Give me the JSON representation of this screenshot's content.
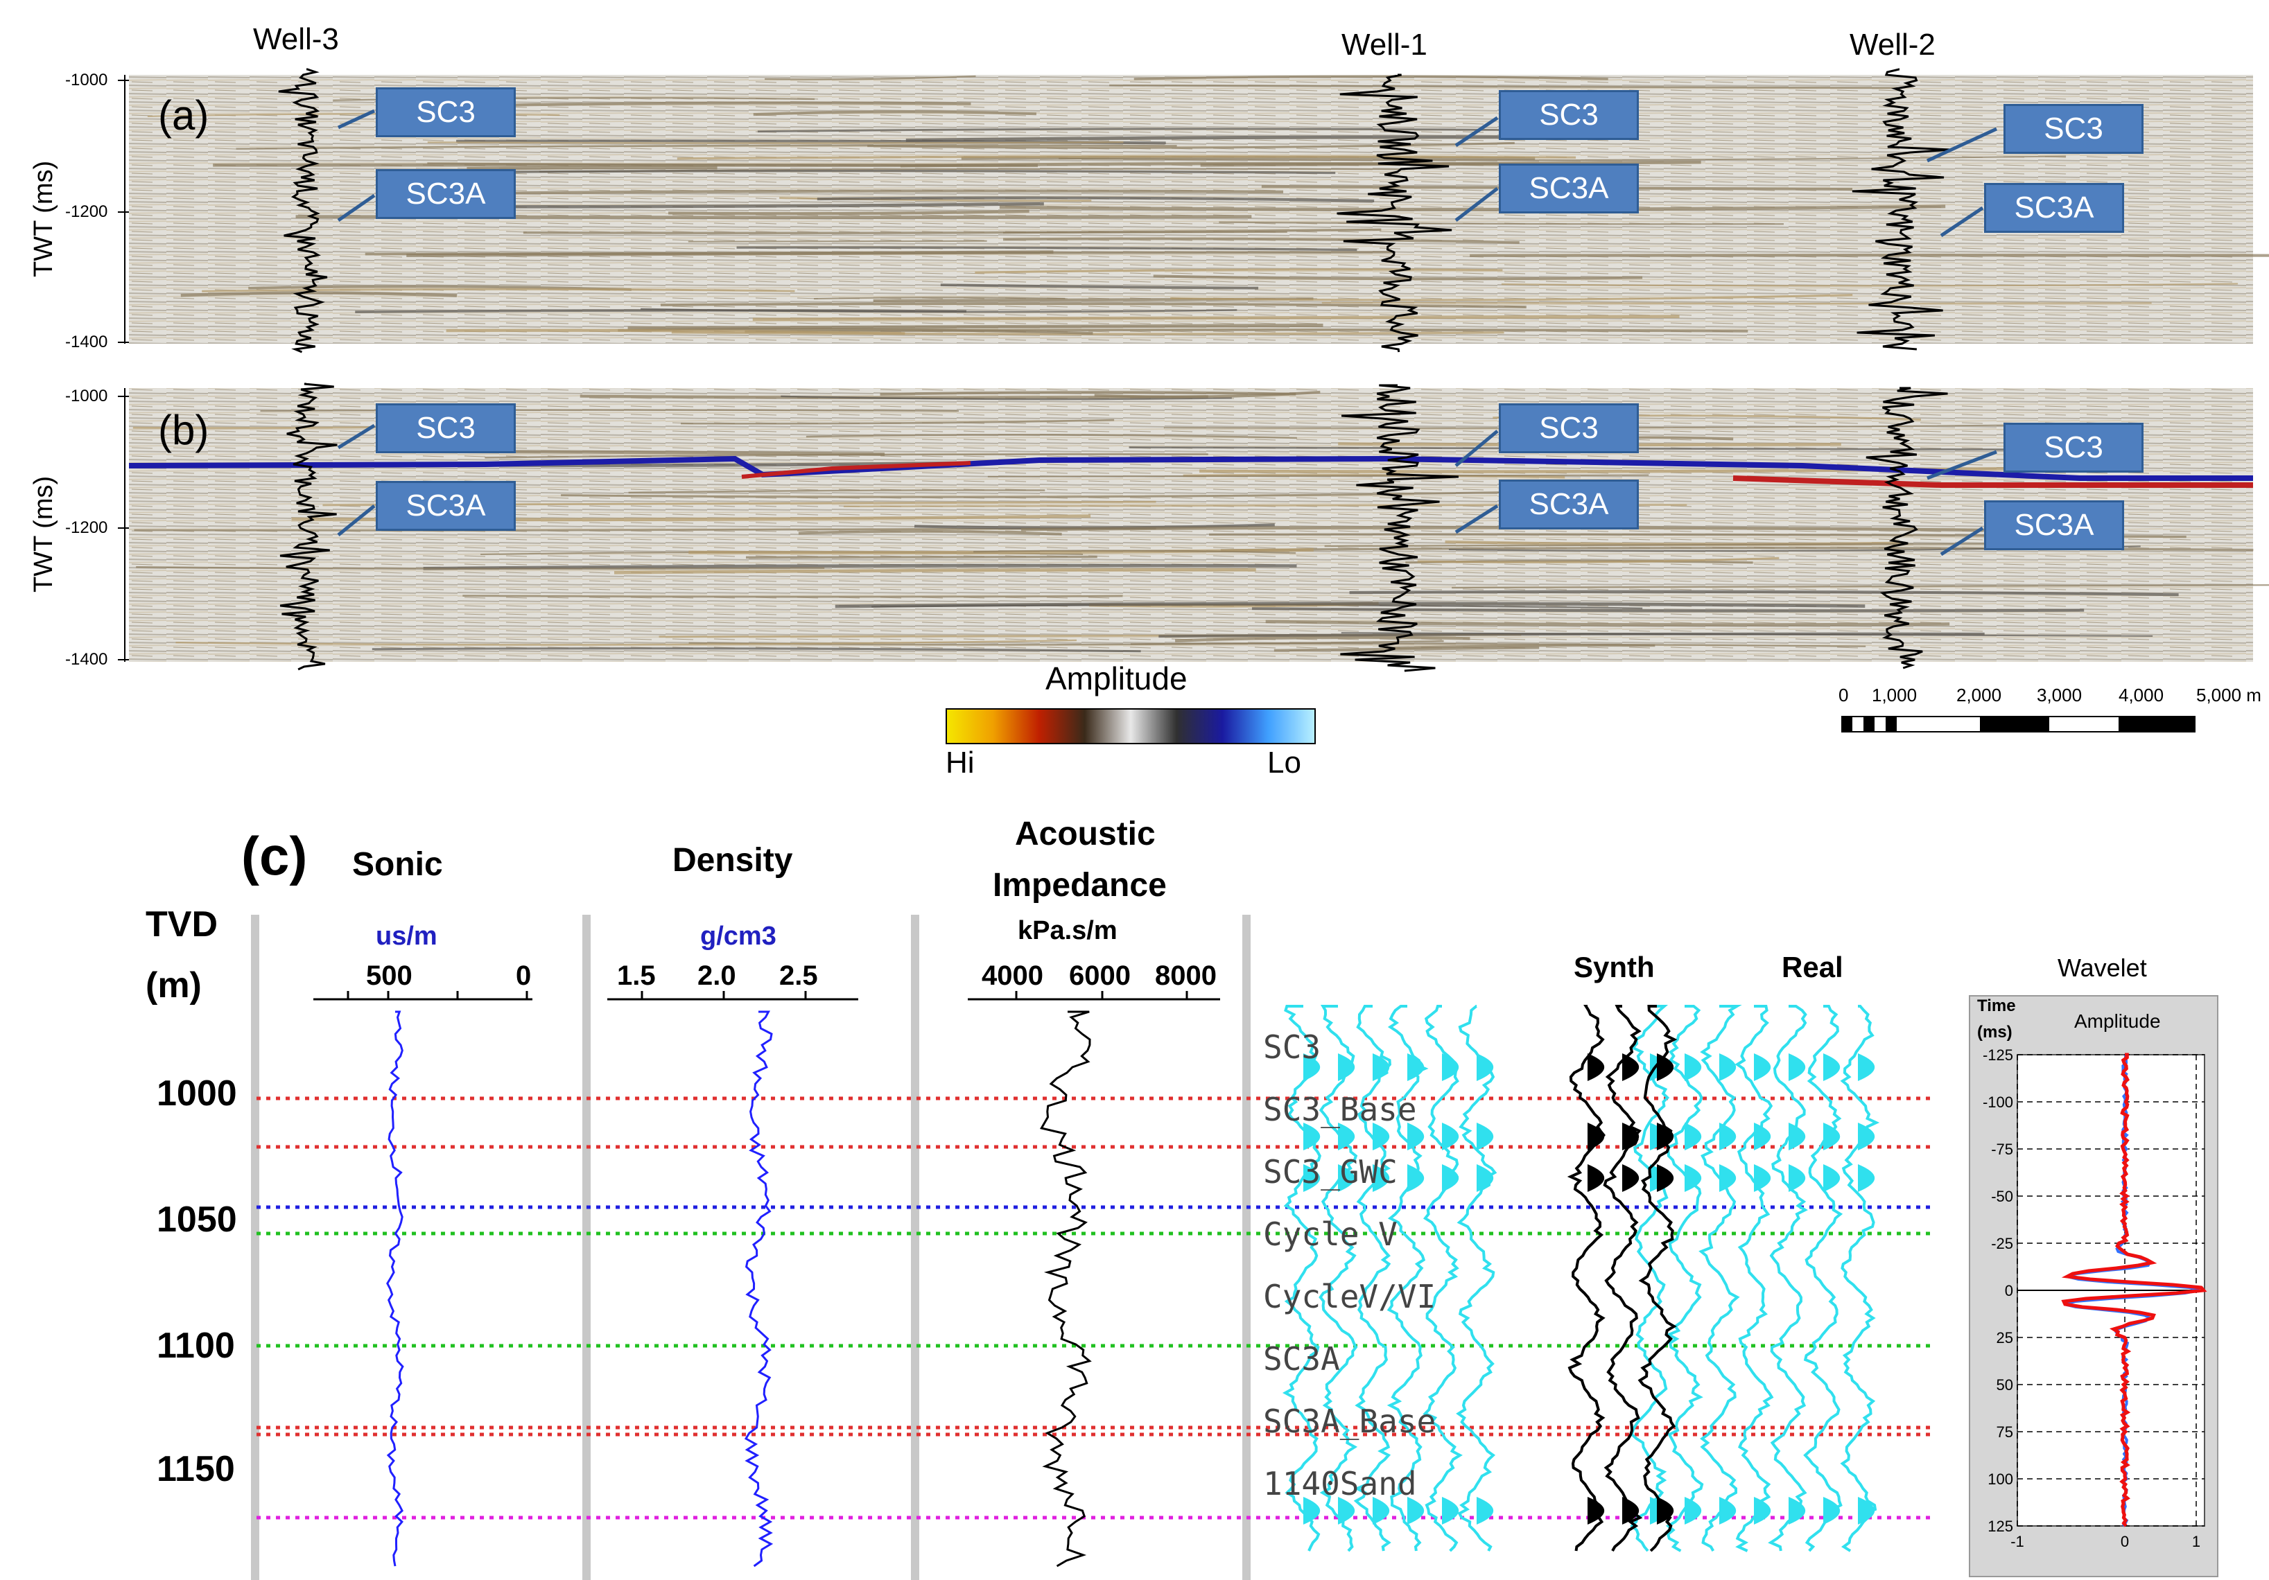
{
  "wells": [
    "Well-3",
    "Well-1",
    "Well-2"
  ],
  "panels": {
    "a": {
      "letter": "(a)",
      "ylabel": "TWT (ms)",
      "yticks": [
        "-1000",
        "-1200",
        "-1400"
      ]
    },
    "b": {
      "letter": "(b)",
      "ylabel": "TWT (ms)",
      "yticks": [
        "-1000",
        "-1200",
        "-1400"
      ]
    }
  },
  "callouts": {
    "top": "SC3",
    "bottom": "SC3A"
  },
  "colorbar": {
    "title": "Amplitude",
    "hi": "Hi",
    "lo": "Lo",
    "colors": [
      "#f5e600",
      "#f0a000",
      "#c02000",
      "#3a2a1a",
      "#e8e8e8",
      "#303030",
      "#1a1aa0",
      "#40a0ff",
      "#b8f0ff"
    ]
  },
  "scalebar": {
    "ticks": [
      "0",
      "1,000",
      "2,000",
      "3,000",
      "4,000",
      "5,000 m"
    ]
  },
  "panel_c": {
    "letter": "(c)",
    "tvd_label": [
      "TVD",
      "(m)"
    ],
    "tvd_ticks": [
      "1000",
      "1050",
      "1100",
      "1150"
    ],
    "tracks": [
      {
        "title": [
          "Sonic"
        ],
        "unit": "us/m",
        "unit_color": "#2020c0",
        "scale": [
          "500",
          "0"
        ],
        "curve_color": "#2020ff"
      },
      {
        "title": [
          "Density"
        ],
        "unit": "g/cm3",
        "unit_color": "#2020c0",
        "scale": [
          "1.5",
          "2.0",
          "2.5"
        ],
        "curve_color": "#2020ff"
      },
      {
        "title": [
          "Acoustic",
          "Impedance"
        ],
        "unit": "kPa.s/m",
        "unit_color": "#000000",
        "scale": [
          "4000",
          "6000",
          "8000"
        ],
        "curve_color": "#000000"
      }
    ],
    "synth_label": "Synth",
    "real_label": "Real",
    "horizons": [
      {
        "name": "SC3",
        "color": "#e03030"
      },
      {
        "name": "SC3_Base",
        "color": "#e03030"
      },
      {
        "name": "SC3_GWC",
        "color": "#2020e0"
      },
      {
        "name": "Cycle V",
        "color": "#20c020"
      },
      {
        "name": "CycleV/VI",
        "color": "#20c020"
      },
      {
        "name": "SC3A",
        "color": "#e03030"
      },
      {
        "name": "SC3A_Base",
        "color": "#e03030"
      },
      {
        "name": "1140Sand",
        "color": "#e020e0"
      }
    ],
    "wavelet": {
      "title": "Wavelet",
      "time_label": "Time",
      "time_unit": "(ms)",
      "amp_label": "Amplitude",
      "time_ticks": [
        "-125",
        "-100",
        "-75",
        "-50",
        "-25",
        "0",
        "25",
        "50",
        "75",
        "100",
        "125"
      ],
      "amp_ticks": [
        "-1",
        "0",
        "1"
      ]
    }
  }
}
